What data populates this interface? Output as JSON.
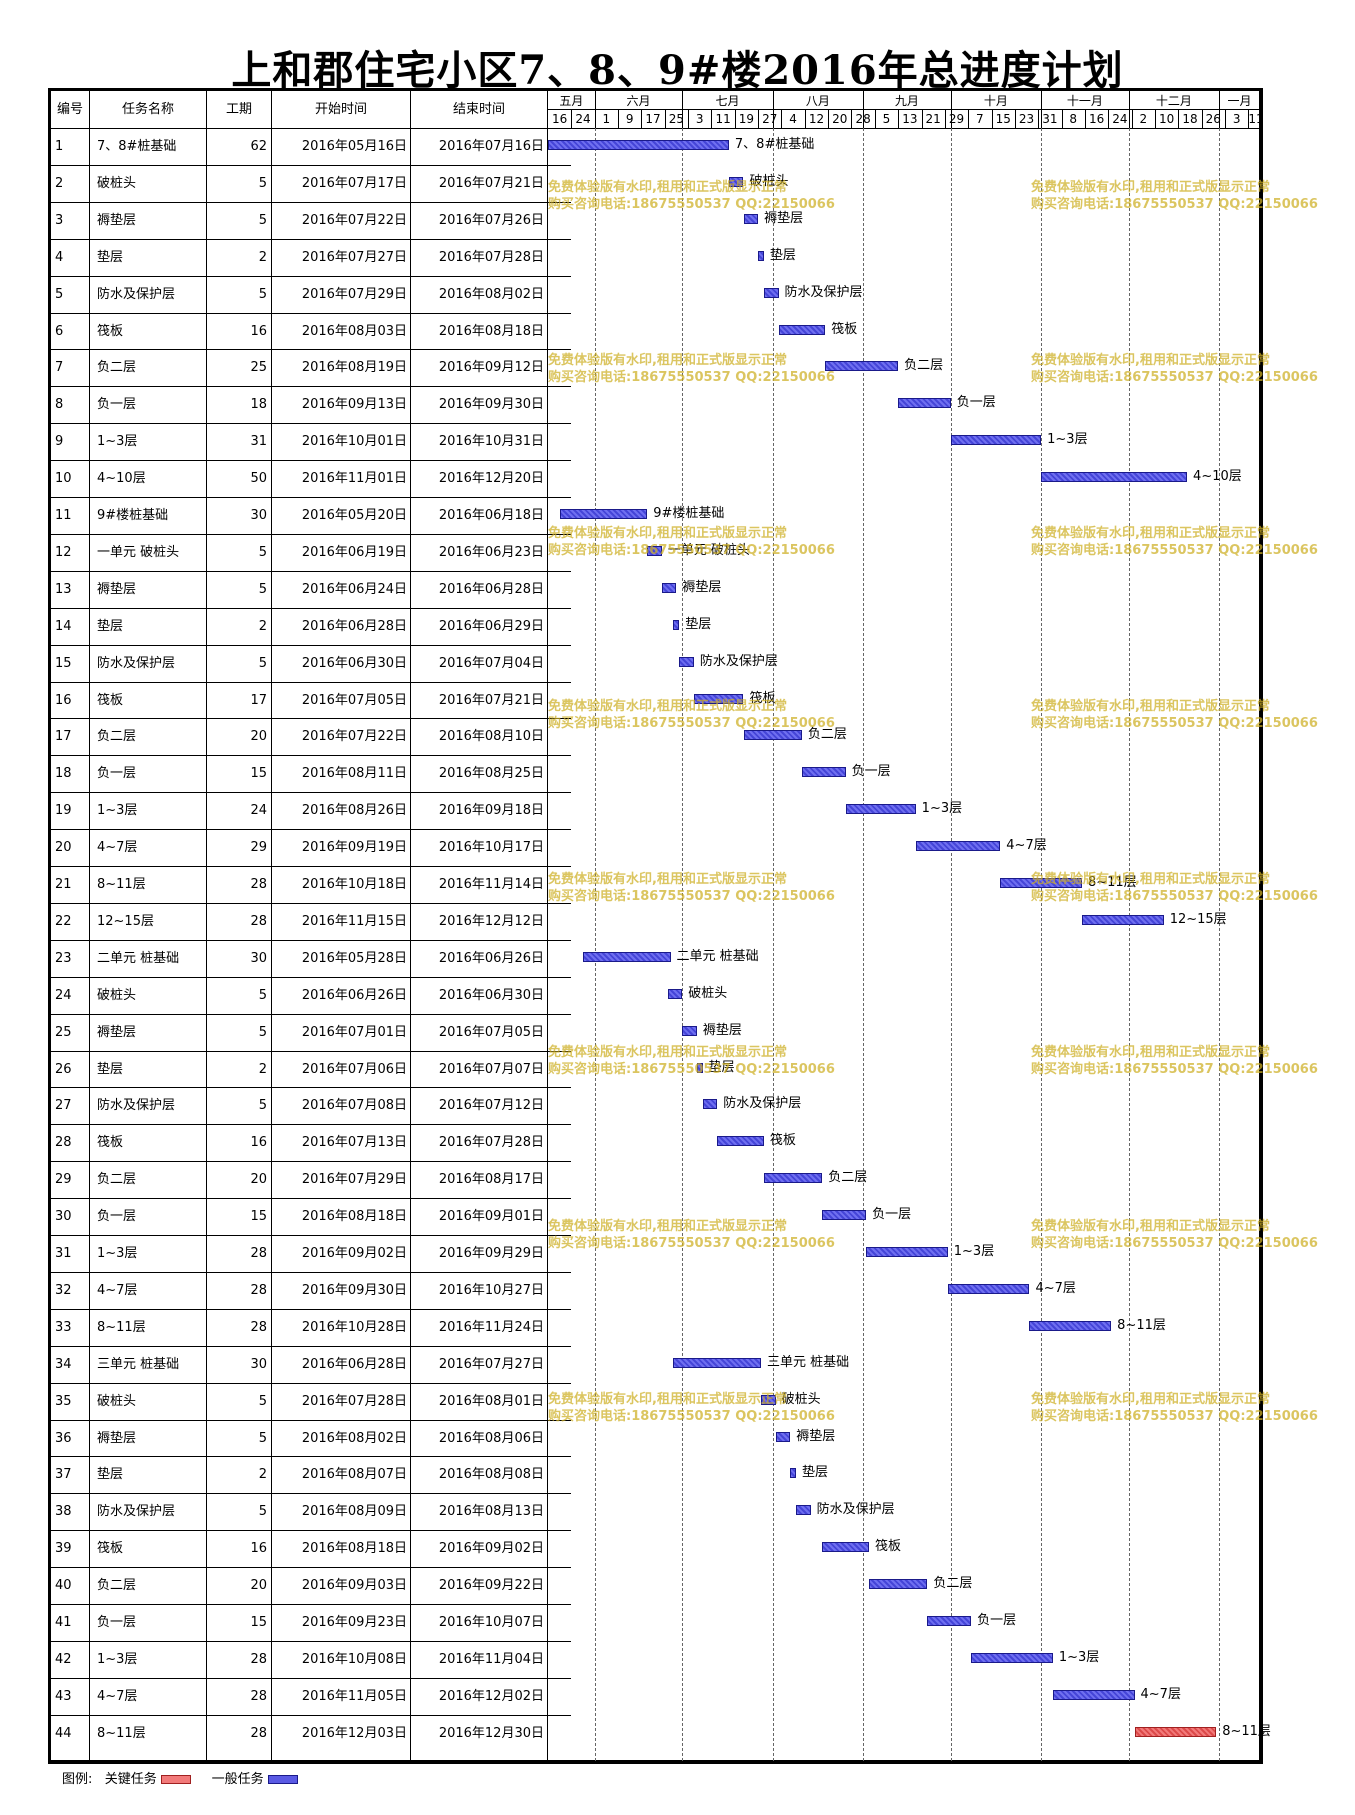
{
  "title": "上和郡住宅小区7、8、9#楼2016年总进度计划",
  "columns": {
    "id": "编号",
    "name": "任务名称",
    "duration": "工期",
    "start": "开始时间",
    "end": "结束时间"
  },
  "chart_data": {
    "type": "gantt",
    "timeline_start": "2016-05-16",
    "timeline_end": "2017-01-15",
    "months": [
      {
        "label": "五月",
        "start": "2016-05-16"
      },
      {
        "label": "六月",
        "start": "2016-06-01"
      },
      {
        "label": "七月",
        "start": "2016-07-01"
      },
      {
        "label": "八月",
        "start": "2016-08-01"
      },
      {
        "label": "九月",
        "start": "2016-09-01"
      },
      {
        "label": "十月",
        "start": "2016-10-01"
      },
      {
        "label": "十一月",
        "start": "2016-11-01"
      },
      {
        "label": "十二月",
        "start": "2016-12-01"
      },
      {
        "label": "一月",
        "start": "2017-01-01"
      }
    ],
    "ticks": [
      {
        "label": "16",
        "date": "2016-05-16"
      },
      {
        "label": "24",
        "date": "2016-05-24"
      },
      {
        "label": "1",
        "date": "2016-06-01"
      },
      {
        "label": "9",
        "date": "2016-06-09"
      },
      {
        "label": "17",
        "date": "2016-06-17"
      },
      {
        "label": "25",
        "date": "2016-06-25"
      },
      {
        "label": "3",
        "date": "2016-07-03"
      },
      {
        "label": "11",
        "date": "2016-07-11"
      },
      {
        "label": "19",
        "date": "2016-07-19"
      },
      {
        "label": "27",
        "date": "2016-07-27"
      },
      {
        "label": "4",
        "date": "2016-08-04"
      },
      {
        "label": "12",
        "date": "2016-08-12"
      },
      {
        "label": "20",
        "date": "2016-08-20"
      },
      {
        "label": "28",
        "date": "2016-08-28"
      },
      {
        "label": "5",
        "date": "2016-09-05"
      },
      {
        "label": "13",
        "date": "2016-09-13"
      },
      {
        "label": "21",
        "date": "2016-09-21"
      },
      {
        "label": "29",
        "date": "2016-09-29"
      },
      {
        "label": "7",
        "date": "2016-10-07"
      },
      {
        "label": "15",
        "date": "2016-10-15"
      },
      {
        "label": "23",
        "date": "2016-10-23"
      },
      {
        "label": "31",
        "date": "2016-10-31"
      },
      {
        "label": "8",
        "date": "2016-11-08"
      },
      {
        "label": "16",
        "date": "2016-11-16"
      },
      {
        "label": "24",
        "date": "2016-11-24"
      },
      {
        "label": "2",
        "date": "2016-12-02"
      },
      {
        "label": "10",
        "date": "2016-12-10"
      },
      {
        "label": "18",
        "date": "2016-12-18"
      },
      {
        "label": "26",
        "date": "2016-12-26"
      },
      {
        "label": "3",
        "date": "2017-01-03"
      },
      {
        "label": "11",
        "date": "2017-01-11"
      }
    ],
    "tasks": [
      {
        "id": "1",
        "name": "7、8#桩基础",
        "duration": "62",
        "start": "2016年05月16日",
        "end": "2016年07月16日",
        "s": "2016-05-16",
        "e": "2016-07-16",
        "critical": false
      },
      {
        "id": "2",
        "name": "破桩头",
        "duration": "5",
        "start": "2016年07月17日",
        "end": "2016年07月21日",
        "s": "2016-07-17",
        "e": "2016-07-21",
        "critical": false
      },
      {
        "id": "3",
        "name": "褥垫层",
        "duration": "5",
        "start": "2016年07月22日",
        "end": "2016年07月26日",
        "s": "2016-07-22",
        "e": "2016-07-26",
        "critical": false
      },
      {
        "id": "4",
        "name": "垫层",
        "duration": "2",
        "start": "2016年07月27日",
        "end": "2016年07月28日",
        "s": "2016-07-27",
        "e": "2016-07-28",
        "critical": false
      },
      {
        "id": "5",
        "name": "防水及保护层",
        "duration": "5",
        "start": "2016年07月29日",
        "end": "2016年08月02日",
        "s": "2016-07-29",
        "e": "2016-08-02",
        "critical": false
      },
      {
        "id": "6",
        "name": "筏板",
        "duration": "16",
        "start": "2016年08月03日",
        "end": "2016年08月18日",
        "s": "2016-08-03",
        "e": "2016-08-18",
        "critical": false
      },
      {
        "id": "7",
        "name": "负二层",
        "duration": "25",
        "start": "2016年08月19日",
        "end": "2016年09月12日",
        "s": "2016-08-19",
        "e": "2016-09-12",
        "critical": false
      },
      {
        "id": "8",
        "name": "负一层",
        "duration": "18",
        "start": "2016年09月13日",
        "end": "2016年09月30日",
        "s": "2016-09-13",
        "e": "2016-09-30",
        "critical": false
      },
      {
        "id": "9",
        "name": "1~3层",
        "duration": "31",
        "start": "2016年10月01日",
        "end": "2016年10月31日",
        "s": "2016-10-01",
        "e": "2016-10-31",
        "critical": false
      },
      {
        "id": "10",
        "name": "4~10层",
        "duration": "50",
        "start": "2016年11月01日",
        "end": "2016年12月20日",
        "s": "2016-11-01",
        "e": "2016-12-20",
        "critical": false
      },
      {
        "id": "11",
        "name": "9#楼桩基础",
        "duration": "30",
        "start": "2016年05月20日",
        "end": "2016年06月18日",
        "s": "2016-05-20",
        "e": "2016-06-18",
        "critical": false
      },
      {
        "id": "12",
        "name": "一单元 破桩头",
        "duration": "5",
        "start": "2016年06月19日",
        "end": "2016年06月23日",
        "s": "2016-06-19",
        "e": "2016-06-23",
        "critical": false
      },
      {
        "id": "13",
        "name": "褥垫层",
        "duration": "5",
        "start": "2016年06月24日",
        "end": "2016年06月28日",
        "s": "2016-06-24",
        "e": "2016-06-28",
        "critical": false
      },
      {
        "id": "14",
        "name": "垫层",
        "duration": "2",
        "start": "2016年06月28日",
        "end": "2016年06月29日",
        "s": "2016-06-28",
        "e": "2016-06-29",
        "critical": false
      },
      {
        "id": "15",
        "name": "防水及保护层",
        "duration": "5",
        "start": "2016年06月30日",
        "end": "2016年07月04日",
        "s": "2016-06-30",
        "e": "2016-07-04",
        "critical": false
      },
      {
        "id": "16",
        "name": "筏板",
        "duration": "17",
        "start": "2016年07月05日",
        "end": "2016年07月21日",
        "s": "2016-07-05",
        "e": "2016-07-21",
        "critical": false
      },
      {
        "id": "17",
        "name": "负二层",
        "duration": "20",
        "start": "2016年07月22日",
        "end": "2016年08月10日",
        "s": "2016-07-22",
        "e": "2016-08-10",
        "critical": false
      },
      {
        "id": "18",
        "name": "负一层",
        "duration": "15",
        "start": "2016年08月11日",
        "end": "2016年08月25日",
        "s": "2016-08-11",
        "e": "2016-08-25",
        "critical": false
      },
      {
        "id": "19",
        "name": "1~3层",
        "duration": "24",
        "start": "2016年08月26日",
        "end": "2016年09月18日",
        "s": "2016-08-26",
        "e": "2016-09-18",
        "critical": false
      },
      {
        "id": "20",
        "name": "4~7层",
        "duration": "29",
        "start": "2016年09月19日",
        "end": "2016年10月17日",
        "s": "2016-09-19",
        "e": "2016-10-17",
        "critical": false
      },
      {
        "id": "21",
        "name": "8~11层",
        "duration": "28",
        "start": "2016年10月18日",
        "end": "2016年11月14日",
        "s": "2016-10-18",
        "e": "2016-11-14",
        "critical": false
      },
      {
        "id": "22",
        "name": "12~15层",
        "duration": "28",
        "start": "2016年11月15日",
        "end": "2016年12月12日",
        "s": "2016-11-15",
        "e": "2016-12-12",
        "critical": false
      },
      {
        "id": "23",
        "name": "二单元 桩基础",
        "duration": "30",
        "start": "2016年05月28日",
        "end": "2016年06月26日",
        "s": "2016-05-28",
        "e": "2016-06-26",
        "critical": false
      },
      {
        "id": "24",
        "name": "破桩头",
        "duration": "5",
        "start": "2016年06月26日",
        "end": "2016年06月30日",
        "s": "2016-06-26",
        "e": "2016-06-30",
        "critical": false
      },
      {
        "id": "25",
        "name": "褥垫层",
        "duration": "5",
        "start": "2016年07月01日",
        "end": "2016年07月05日",
        "s": "2016-07-01",
        "e": "2016-07-05",
        "critical": false
      },
      {
        "id": "26",
        "name": "垫层",
        "duration": "2",
        "start": "2016年07月06日",
        "end": "2016年07月07日",
        "s": "2016-07-06",
        "e": "2016-07-07",
        "critical": false
      },
      {
        "id": "27",
        "name": "防水及保护层",
        "duration": "5",
        "start": "2016年07月08日",
        "end": "2016年07月12日",
        "s": "2016-07-08",
        "e": "2016-07-12",
        "critical": false
      },
      {
        "id": "28",
        "name": "筏板",
        "duration": "16",
        "start": "2016年07月13日",
        "end": "2016年07月28日",
        "s": "2016-07-13",
        "e": "2016-07-28",
        "critical": false
      },
      {
        "id": "29",
        "name": "负二层",
        "duration": "20",
        "start": "2016年07月29日",
        "end": "2016年08月17日",
        "s": "2016-07-29",
        "e": "2016-08-17",
        "critical": false
      },
      {
        "id": "30",
        "name": "负一层",
        "duration": "15",
        "start": "2016年08月18日",
        "end": "2016年09月01日",
        "s": "2016-08-18",
        "e": "2016-09-01",
        "critical": false
      },
      {
        "id": "31",
        "name": "1~3层",
        "duration": "28",
        "start": "2016年09月02日",
        "end": "2016年09月29日",
        "s": "2016-09-02",
        "e": "2016-09-29",
        "critical": false
      },
      {
        "id": "32",
        "name": "4~7层",
        "duration": "28",
        "start": "2016年09月30日",
        "end": "2016年10月27日",
        "s": "2016-09-30",
        "e": "2016-10-27",
        "critical": false
      },
      {
        "id": "33",
        "name": "8~11层",
        "duration": "28",
        "start": "2016年10月28日",
        "end": "2016年11月24日",
        "s": "2016-10-28",
        "e": "2016-11-24",
        "critical": false
      },
      {
        "id": "34",
        "name": "三单元  桩基础",
        "duration": "30",
        "start": "2016年06月28日",
        "end": "2016年07月27日",
        "s": "2016-06-28",
        "e": "2016-07-27",
        "critical": false
      },
      {
        "id": "35",
        "name": "破桩头",
        "duration": "5",
        "start": "2016年07月28日",
        "end": "2016年08月01日",
        "s": "2016-07-28",
        "e": "2016-08-01",
        "critical": false
      },
      {
        "id": "36",
        "name": "褥垫层",
        "duration": "5",
        "start": "2016年08月02日",
        "end": "2016年08月06日",
        "s": "2016-08-02",
        "e": "2016-08-06",
        "critical": false
      },
      {
        "id": "37",
        "name": "垫层",
        "duration": "2",
        "start": "2016年08月07日",
        "end": "2016年08月08日",
        "s": "2016-08-07",
        "e": "2016-08-08",
        "critical": false
      },
      {
        "id": "38",
        "name": "防水及保护层",
        "duration": "5",
        "start": "2016年08月09日",
        "end": "2016年08月13日",
        "s": "2016-08-09",
        "e": "2016-08-13",
        "critical": false
      },
      {
        "id": "39",
        "name": "筏板",
        "duration": "16",
        "start": "2016年08月18日",
        "end": "2016年09月02日",
        "s": "2016-08-18",
        "e": "2016-09-02",
        "critical": false
      },
      {
        "id": "40",
        "name": "负二层",
        "duration": "20",
        "start": "2016年09月03日",
        "end": "2016年09月22日",
        "s": "2016-09-03",
        "e": "2016-09-22",
        "critical": false
      },
      {
        "id": "41",
        "name": "负一层",
        "duration": "15",
        "start": "2016年09月23日",
        "end": "2016年10月07日",
        "s": "2016-09-23",
        "e": "2016-10-07",
        "critical": false
      },
      {
        "id": "42",
        "name": "1~3层",
        "duration": "28",
        "start": "2016年10月08日",
        "end": "2016年11月04日",
        "s": "2016-10-08",
        "e": "2016-11-04",
        "critical": false
      },
      {
        "id": "43",
        "name": "4~7层",
        "duration": "28",
        "start": "2016年11月05日",
        "end": "2016年12月02日",
        "s": "2016-11-05",
        "e": "2016-12-02",
        "critical": false
      },
      {
        "id": "44",
        "name": "8~11层",
        "duration": "28",
        "start": "2016年12月03日",
        "end": "2016年12月30日",
        "s": "2016-12-03",
        "e": "2016-12-30",
        "critical": true
      }
    ]
  },
  "legend": {
    "label": "图例:",
    "critical": "关键任务",
    "normal": "一般任务"
  },
  "watermark": {
    "line1": "免费体验版有水印,租用和正式版显示正常",
    "line2": "购买咨询电话:18675550537 QQ:22150066"
  },
  "colors": {
    "normal_bar": "#5a5ae4",
    "critical_bar": "#f27a7a",
    "watermark": "#cdaf23"
  }
}
